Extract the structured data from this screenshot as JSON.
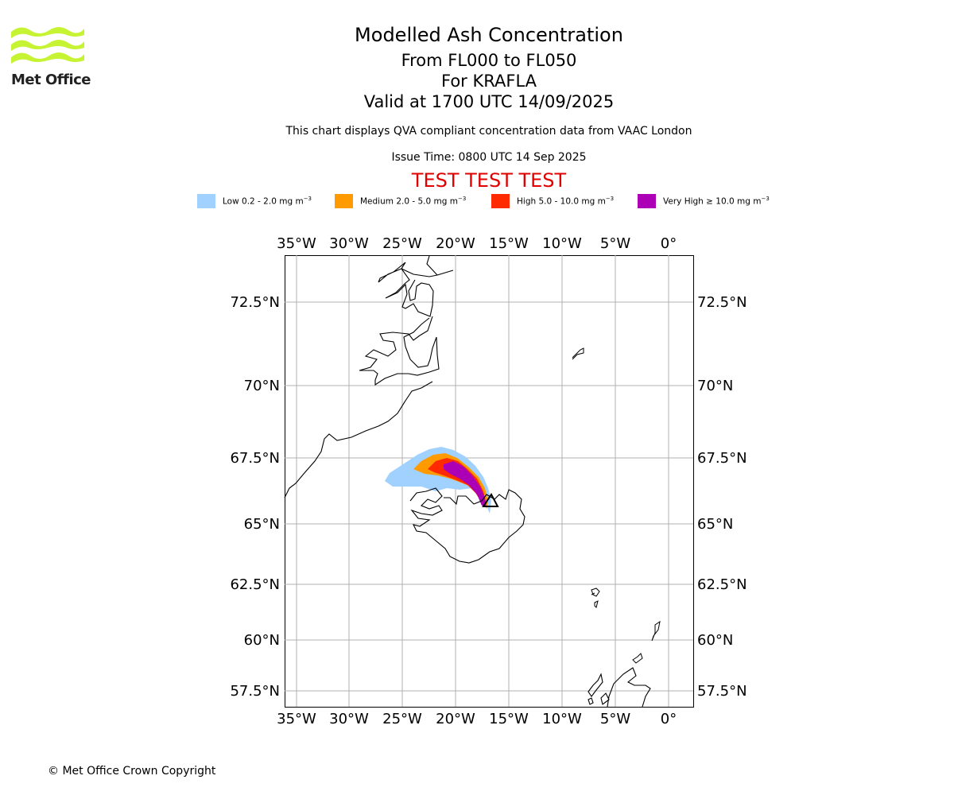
{
  "logo": {
    "text": "Met Office",
    "color": "#c6f432"
  },
  "header": {
    "title": "Modelled Ash Concentration",
    "levels": "From FL000 to FL050",
    "volcano": "For KRAFLA",
    "valid": "Valid at 1700 UTC 14/09/2025",
    "description": "This chart displays QVA compliant concentration data from VAAC London",
    "issue_time": "Issue Time: 0800 UTC 14 Sep 2025",
    "test_banner": "TEST TEST TEST"
  },
  "legend": [
    {
      "label": "Low 0.2 - 2.0 mg m",
      "exp": "−3",
      "color": "#a0d1ff"
    },
    {
      "label": "Medium 2.0 - 5.0 mg m",
      "exp": "−3",
      "color": "#ff9a00"
    },
    {
      "label": "High 5.0 - 10.0 mg m",
      "exp": "−3",
      "color": "#ff2a00"
    },
    {
      "label": "Very High ≥ 10.0 mg m",
      "exp": "−3",
      "color": "#ab00b5"
    }
  ],
  "map": {
    "lon_ticks": [
      "35°W",
      "30°W",
      "25°W",
      "20°W",
      "15°W",
      "10°W",
      "5°W",
      "0°"
    ],
    "lat_ticks": [
      "72.5°N",
      "70°N",
      "67.5°N",
      "65°N",
      "62.5°N",
      "60°N",
      "57.5°N"
    ],
    "volcano_marker": "triangle"
  },
  "footer": {
    "copyright": "© Met Office Crown Copyright"
  }
}
